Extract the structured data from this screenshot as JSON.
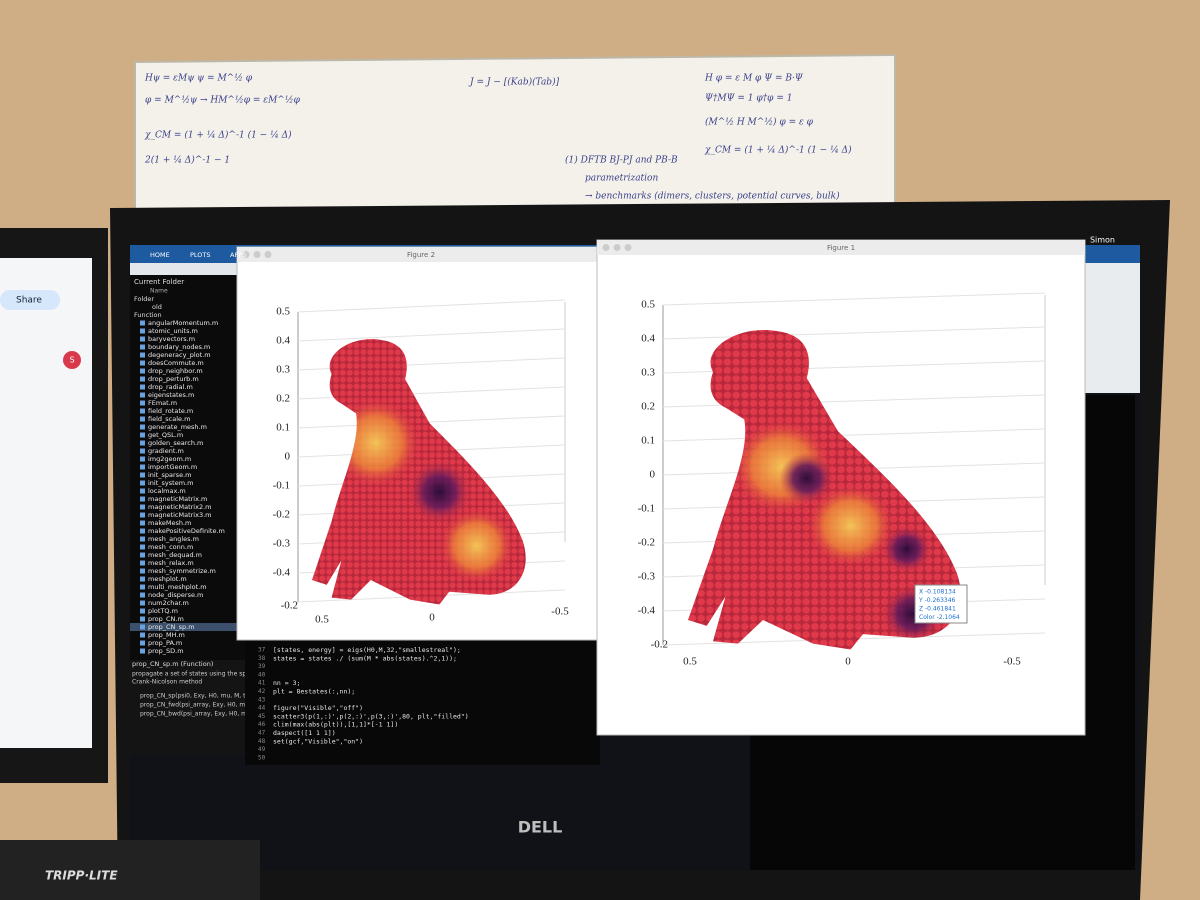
{
  "whiteboard": {
    "lines": [
      "Hψ = εMψ   ψ = M^½ φ",
      "φ = M^½ψ → HM^½φ = εM^½φ",
      "χ_CM = (1 + ¼ Δ)^-1 (1 − ¼ Δ)",
      "2(1 + ¼ Δ)^-1 − 1",
      "J = J − [(Kab)(Tab)]",
      "(1) DFTB   BJ-PJ  and  PB-B",
      "parametrization",
      "→ benchmarks (dimers, clusters, potential curves, bulk)",
      "H φ = ε M φ     Ψ = B·Ψ",
      "Ψ†MΨ = 1   φ†φ = 1",
      "(M^½ H M^½) φ = ε φ",
      "χ_CM = (1 + ¼ Δ)^-1 (1 − ¼ Δ)"
    ]
  },
  "left_monitor": {
    "share": "Share",
    "avatar": "S"
  },
  "matlab": {
    "tabs": [
      "HOME",
      "PLOTS",
      "APPS"
    ],
    "user": "Simon",
    "current_folder": "Current Folder",
    "name_col": "Name",
    "folder_label": "Folder",
    "folder": "old",
    "function_label": "Function",
    "files": [
      "angularMomentum.m",
      "atomic_units.m",
      "baryvectors.m",
      "boundary_nodes.m",
      "degeneracy_plot.m",
      "doesCommute.m",
      "drop_neighbor.m",
      "drop_perturb.m",
      "drop_radial.m",
      "eigenstates.m",
      "FEmat.m",
      "field_rotate.m",
      "field_scale.m",
      "generate_mesh.m",
      "get_QSL.m",
      "golden_search.m",
      "gradient.m",
      "img2geom.m",
      "importGeom.m",
      "init_sparse.m",
      "init_system.m",
      "localmax.m",
      "magneticMatrix.m",
      "magneticMatrix2.m",
      "magneticMatrix3.m",
      "makeMesh.m",
      "makePositiveDefinite.m",
      "mesh_angles.m",
      "mesh_conn.m",
      "mesh_dequad.m",
      "mesh_relax.m",
      "mesh_symmetrize.m",
      "meshplot.m",
      "multi_meshplot.m",
      "node_disperse.m",
      "num2char.m",
      "plotTQ.m",
      "prop_CN.m",
      "prop_CN_sp.m",
      "prop_MH.m",
      "prop_PA.m",
      "prop_SD.m"
    ],
    "details": {
      "title": "prop_CN_sp.m (Function)",
      "description": [
        "propagate a set of states using the sparse",
        "Crank-Nicolson method"
      ],
      "signatures": [
        "prop_CN_sp(psi0, Exy, H0, mu, M, tau, ...",
        "prop_CN_fwd(psi_array, Exy, H0, mu, ...",
        "prop_CN_bwd(psi_array, Exy, H0, mu, ..."
      ]
    },
    "code": [
      {
        "n": 37,
        "text": "[states, energy] = eigs(H0,M,32,\"smallestreal\");"
      },
      {
        "n": 38,
        "text": "states = states ./ (sum(M * abs(states).^2,1));"
      },
      {
        "n": 39
      },
      {
        "n": 40
      },
      {
        "n": 41,
        "text": "nn = 3;"
      },
      {
        "n": 42,
        "text": "plt = 8estates(:,nn);"
      },
      {
        "n": 43
      },
      {
        "n": 44,
        "text": "figure(\"Visible\",\"off\")"
      },
      {
        "n": 45,
        "text": "scatter3(p(1,:)',p(2,:)',p(3,:)',80, plt,\"filled\")"
      },
      {
        "n": 46,
        "text": "clim(max(abs(plt)),[1,1]*[-1 1])"
      },
      {
        "n": 47,
        "text": "daspect([1 1 1])"
      },
      {
        "n": 48,
        "text": "set(gcf,\"Visible\",\"on\")"
      },
      {
        "n": 49
      },
      {
        "n": 50
      }
    ]
  },
  "figures": [
    {
      "title": "Figure 2",
      "zticks": [
        0.5,
        0.4,
        0.3,
        0.2,
        0.1,
        0,
        -0.1,
        -0.2,
        -0.3,
        -0.4,
        -0.5
      ],
      "xticks": [
        0.5,
        0,
        -0.5
      ],
      "corner_tick": -0.2
    },
    {
      "title": "Figure 1",
      "zticks": [
        0.5,
        0.4,
        0.3,
        0.2,
        0.1,
        0,
        -0.1,
        -0.2,
        -0.3,
        -0.4,
        -0.5
      ],
      "xticks": [
        0.5,
        0,
        -0.5
      ],
      "corner_tick": -0.2,
      "datatip": [
        "X -0.108134",
        "Y -0.263346",
        "Z -0.461841",
        "Color -2.1064"
      ]
    }
  ],
  "monitor_brand": "DELL",
  "ups_brand": "TRIPP·LITE"
}
